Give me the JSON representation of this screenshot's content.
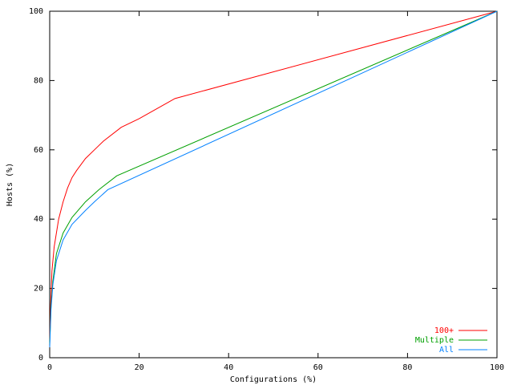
{
  "chart_data": {
    "type": "line",
    "xlabel": "Configurations (%)",
    "ylabel": "Hosts (%)",
    "xlim": [
      0,
      100
    ],
    "ylim": [
      0,
      100
    ],
    "xticks": [
      0,
      20,
      40,
      60,
      80,
      100
    ],
    "yticks": [
      0,
      20,
      40,
      60,
      80,
      100
    ],
    "legend": "lower right",
    "series": [
      {
        "name": "100+",
        "color": "#ff0000",
        "x": [
          0,
          0.2,
          0.5,
          1,
          2,
          3,
          4,
          5,
          6,
          8,
          10,
          12,
          16,
          20,
          28,
          100
        ],
        "values": [
          5,
          15,
          25,
          32,
          40,
          45,
          49,
          52,
          54,
          57.5,
          60,
          62.5,
          66.5,
          69,
          74.8,
          100
        ]
      },
      {
        "name": "Multiple",
        "color": "#00a000",
        "x": [
          0,
          0.3,
          0.7,
          1.5,
          3,
          5,
          8,
          11,
          15,
          100
        ],
        "values": [
          4,
          15,
          22,
          30,
          36,
          40.5,
          45,
          48.5,
          52.5,
          100
        ]
      },
      {
        "name": "All",
        "color": "#0080ff",
        "x": [
          0,
          0.3,
          0.7,
          1.5,
          3,
          5,
          8,
          10,
          13,
          100
        ],
        "values": [
          3,
          14,
          21,
          28,
          34,
          38.5,
          42.5,
          45,
          48.5,
          100
        ]
      }
    ]
  }
}
